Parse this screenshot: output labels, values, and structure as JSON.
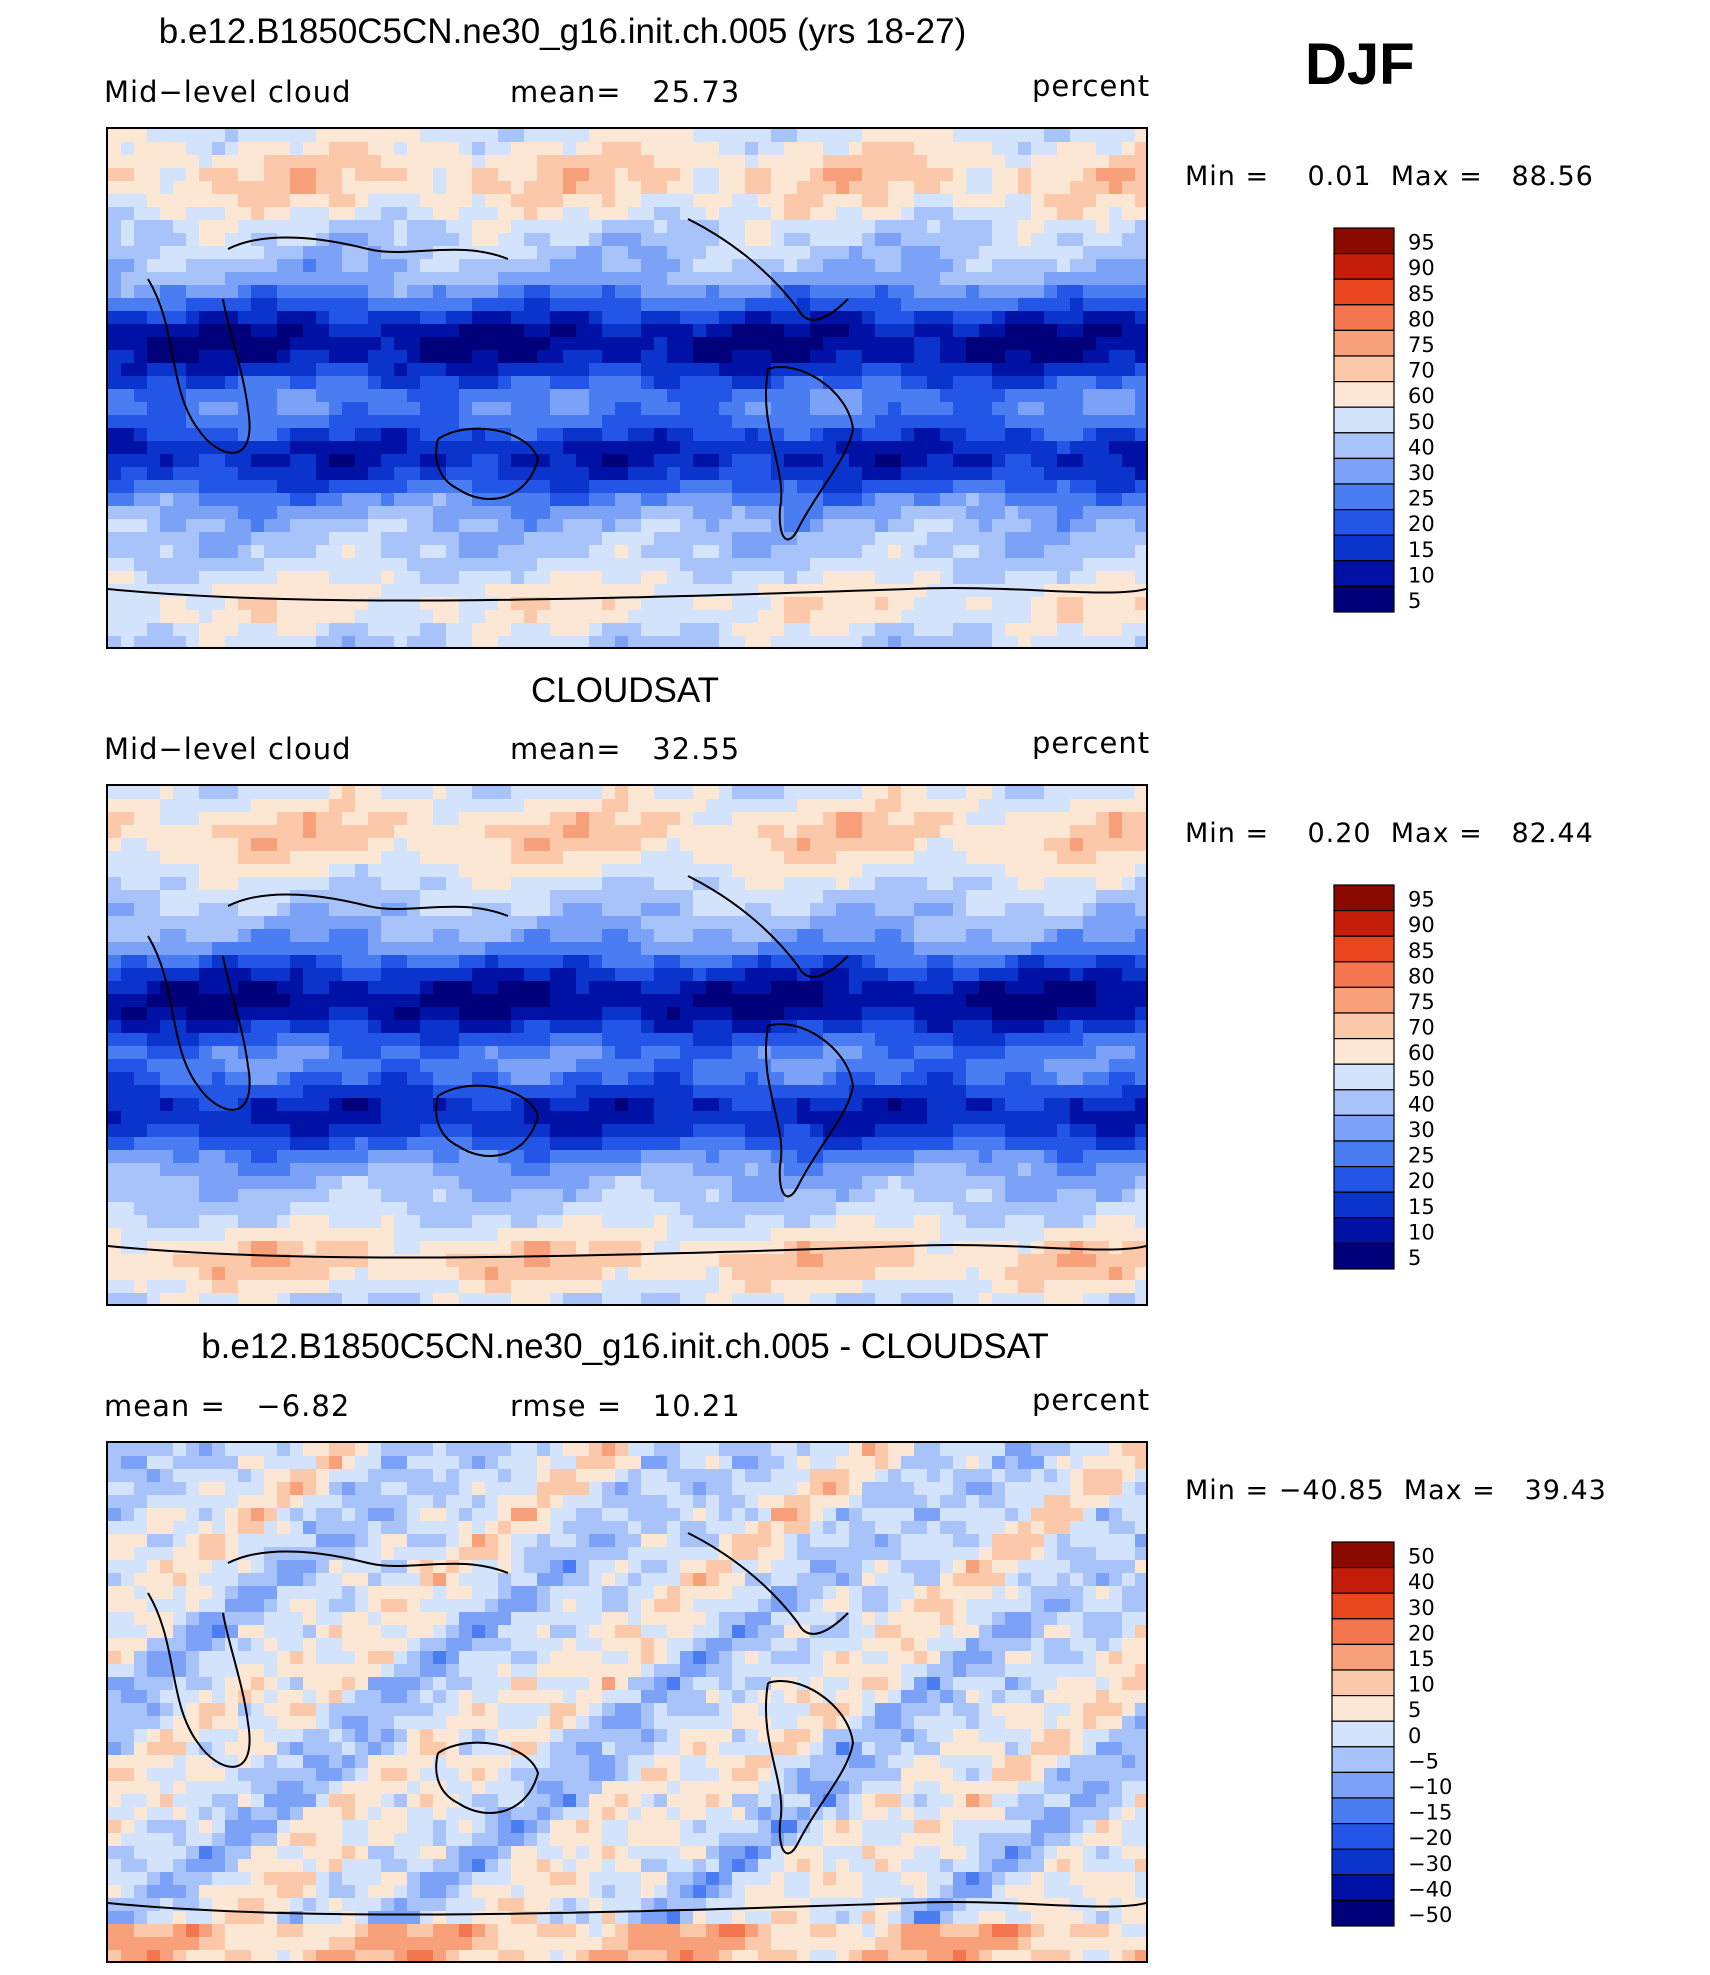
{
  "season": "DJF",
  "colors": {
    "scale_abs": [
      "#00007a",
      "#0011a6",
      "#0a34cc",
      "#2356e6",
      "#4a7cf2",
      "#7ca2f7",
      "#a8c2fa",
      "#d3e3fc",
      "#fce7d4",
      "#fbc9aa",
      "#f7a07a",
      "#f3764f",
      "#e9461f",
      "#c41e0b",
      "#8b0a00"
    ],
    "scale_diff": [
      "#00007a",
      "#0011a6",
      "#0a34cc",
      "#2356e6",
      "#4a7cf2",
      "#7ca2f7",
      "#a8c2fa",
      "#d3e3fc",
      "#fce7d4",
      "#fbc9aa",
      "#f7a07a",
      "#f3764f",
      "#e9461f",
      "#c41e0b",
      "#8b0a00"
    ]
  },
  "panels": [
    {
      "id": "model",
      "title": "b.e12.B1850C5CN.ne30_g16.init.ch.005 (yrs 18-27)",
      "left_label": "Mid−level cloud",
      "center_label": "mean=   25.73",
      "right_label": "percent",
      "minmax": "Min =    0.01  Max =   88.56",
      "chart_data": {
        "type": "heatmap",
        "title": "b.e12.B1850C5CN.ne30_g16.init.ch.005 (yrs 18-27)",
        "variable": "Mid-level cloud",
        "units": "percent",
        "mean": 25.73,
        "min": 0.01,
        "max": 88.56,
        "levels": [
          5,
          10,
          15,
          20,
          25,
          30,
          40,
          50,
          60,
          70,
          75,
          80,
          85,
          90,
          95
        ],
        "level_labels": [
          "95",
          "90",
          "85",
          "80",
          "75",
          "70",
          "60",
          "50",
          "40",
          "30",
          "25",
          "20",
          "15",
          "10",
          "5"
        ]
      }
    },
    {
      "id": "obs",
      "title": "CLOUDSAT",
      "left_label": "Mid−level cloud",
      "center_label": "mean=   32.55",
      "right_label": "percent",
      "minmax": "Min =    0.20  Max =   82.44",
      "chart_data": {
        "type": "heatmap",
        "title": "CLOUDSAT",
        "variable": "Mid-level cloud",
        "units": "percent",
        "mean": 32.55,
        "min": 0.2,
        "max": 82.44,
        "levels": [
          5,
          10,
          15,
          20,
          25,
          30,
          40,
          50,
          60,
          70,
          75,
          80,
          85,
          90,
          95
        ],
        "level_labels": [
          "95",
          "90",
          "85",
          "80",
          "75",
          "70",
          "60",
          "50",
          "40",
          "30",
          "25",
          "20",
          "15",
          "10",
          "5"
        ]
      }
    },
    {
      "id": "diff",
      "title": "b.e12.B1850C5CN.ne30_g16.init.ch.005 - CLOUDSAT",
      "left_label": "mean =   −6.82",
      "center_label": "rmse =   10.21",
      "right_label": "percent",
      "minmax": "Min = −40.85  Max =   39.43",
      "chart_data": {
        "type": "heatmap",
        "title": "b.e12.B1850C5CN.ne30_g16.init.ch.005 - CLOUDSAT",
        "units": "percent",
        "mean": -6.82,
        "rmse": 10.21,
        "min": -40.85,
        "max": 39.43,
        "levels": [
          -50,
          -40,
          -30,
          -20,
          -15,
          -10,
          -5,
          0,
          5,
          10,
          15,
          20,
          30,
          40,
          50
        ],
        "level_labels": [
          "50",
          "40",
          "30",
          "20",
          "15",
          "10",
          "5",
          "0",
          "−5",
          "−10",
          "−15",
          "−20",
          "−30",
          "−40",
          "−50"
        ]
      }
    }
  ]
}
